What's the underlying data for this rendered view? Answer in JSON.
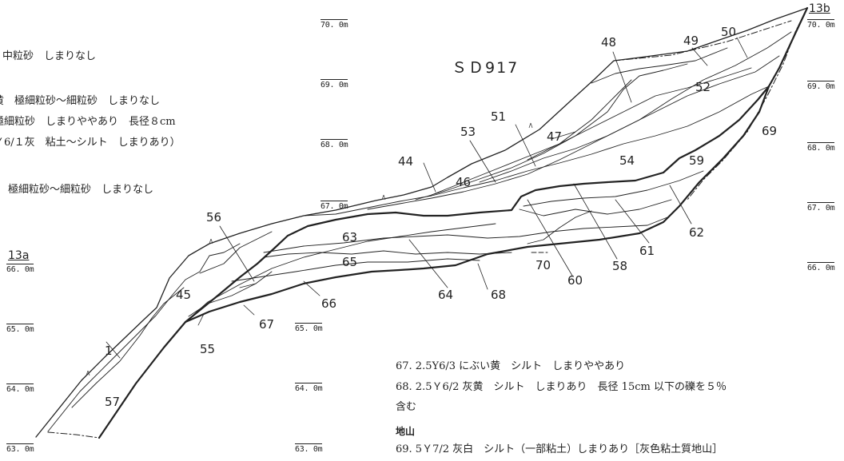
{
  "figure_title": "ＳＤ917",
  "left_notes": [
    "中粒砂　しまりなし",
    "黄　極細粒砂～細粒砂　しまりなし",
    "極細粒砂　しまりややあり　長径８cm",
    "Ｙ6/１灰　粘土～シルト　しまりあり）",
    "極細粒砂～細粒砂　しまりなし"
  ],
  "right_notes": {
    "item67": "67.  2.5Y6/3 にぶい黄　シルト　しまりややあり",
    "item68_line1": "68.  2.5Ｙ6/2 灰黄　シルト　しまりあり　長径 15cm 以下の礫を５％",
    "item68_line2": "含む",
    "subheading": "地山",
    "item69": "69.  5Ｙ7/2 灰白　シルト（一部粘土）しまりあり［灰色粘土質地山］"
  },
  "section_markers": {
    "left": "13a",
    "right": "13b"
  },
  "elevations": {
    "col_mid": [
      "70. 0m",
      "69. 0m",
      "68. 0m",
      "67. 0m",
      "65. 0m",
      "64. 0m",
      "63. 0m"
    ],
    "col_right": [
      "70. 0m",
      "69. 0m",
      "68. 0m",
      "67. 0m",
      "66. 0m"
    ],
    "col_left": [
      "66. 0m",
      "65. 0m",
      "64. 0m",
      "63. 0m"
    ]
  },
  "layer_numbers": [
    "1",
    "44",
    "45",
    "46",
    "47",
    "48",
    "49",
    "50",
    "51",
    "52",
    "53",
    "54",
    "55",
    "56",
    "57",
    "58",
    "59",
    "60",
    "61",
    "62",
    "63",
    "64",
    "65",
    "66",
    "67",
    "68",
    "69",
    "70"
  ]
}
